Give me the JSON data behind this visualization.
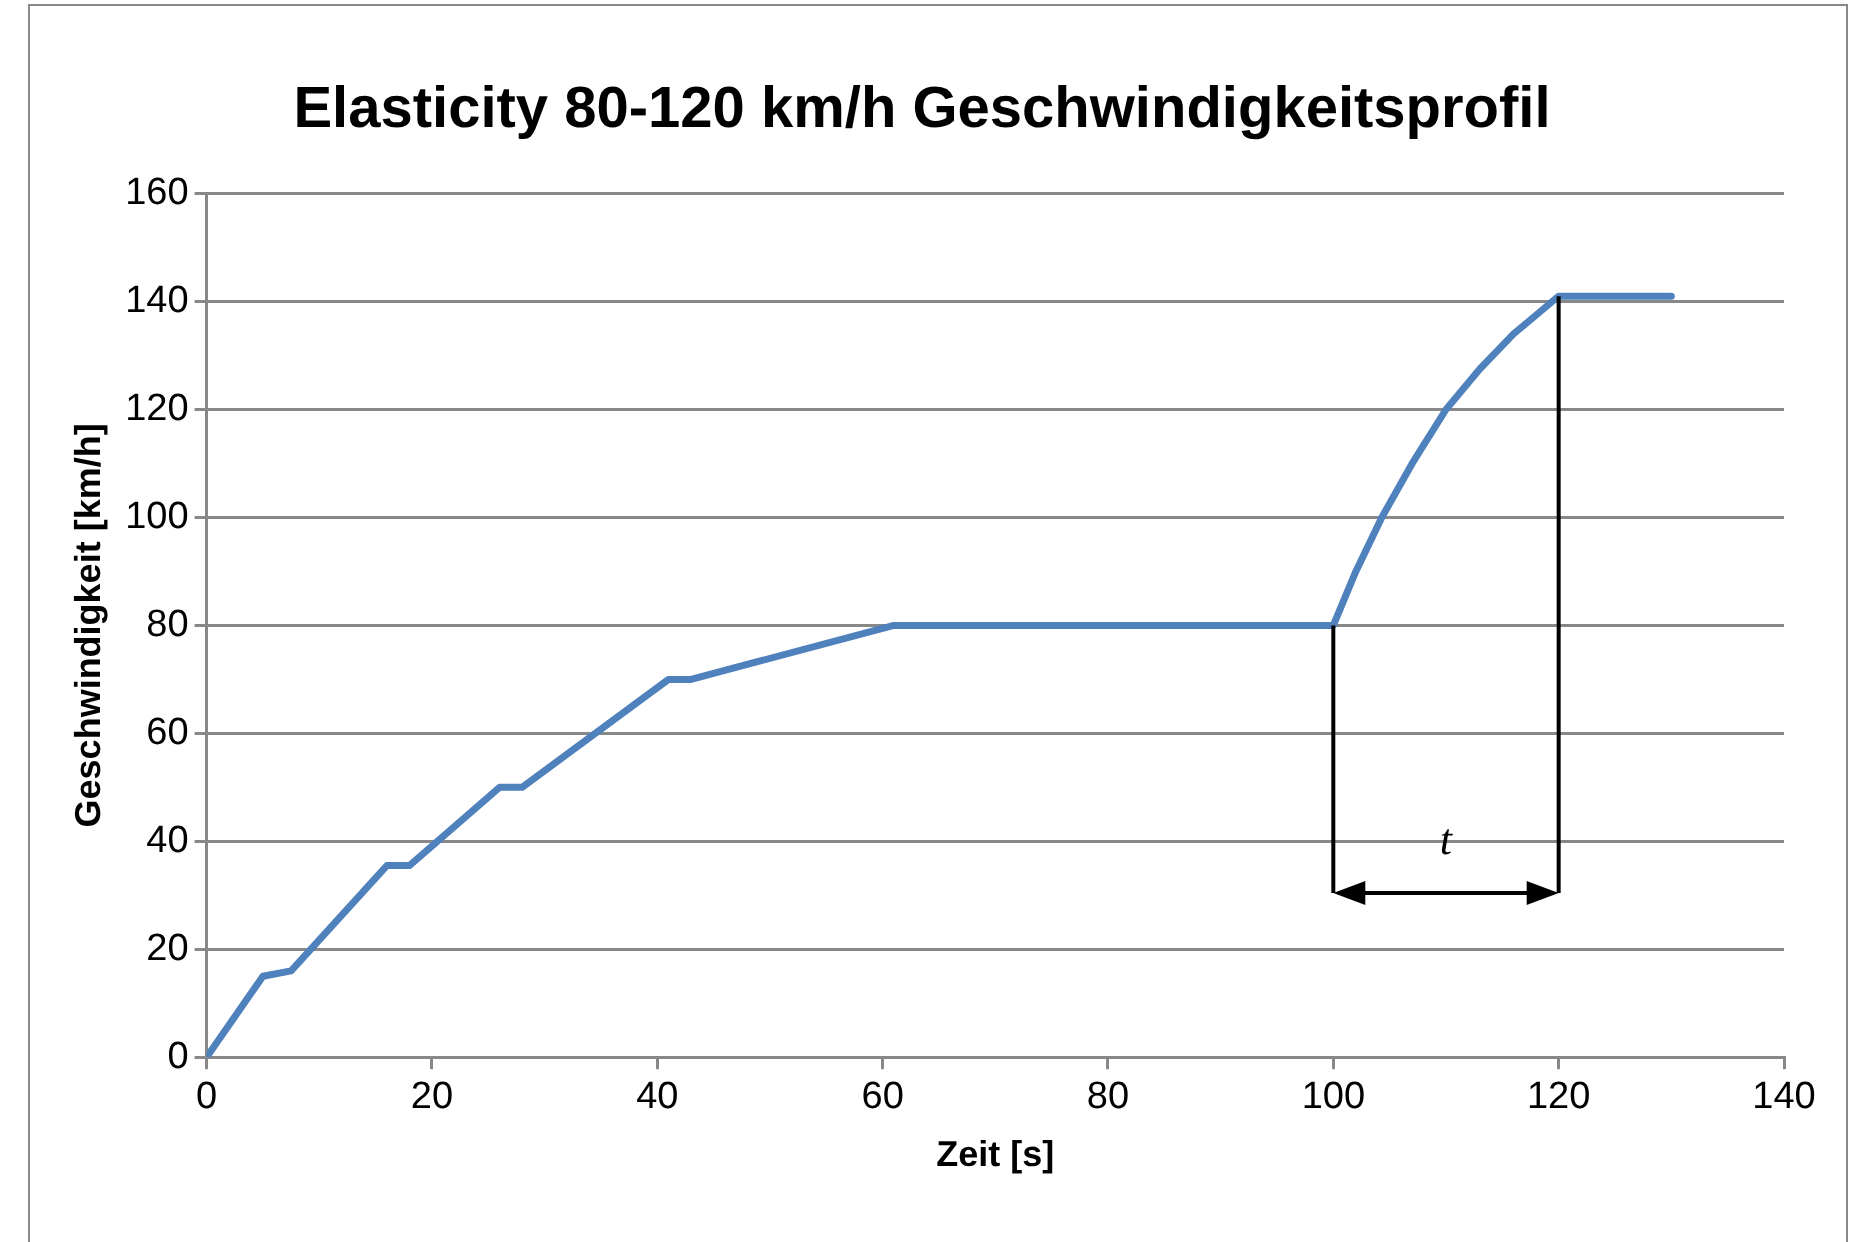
{
  "chart_data": {
    "type": "line",
    "title": "Elasticity 80-120 km/h Geschwindigkeitsprofil",
    "xlabel": "Zeit [s]",
    "ylabel": "Geschwindigkeit [km/h]",
    "x": [
      0,
      5,
      7.5,
      16,
      18,
      26,
      28,
      41,
      43,
      61,
      100,
      102,
      104.3,
      107,
      110,
      113,
      116,
      120,
      130
    ],
    "series": [
      {
        "color": "#4f81bd",
        "values": [
          0,
          15,
          16,
          35.5,
          35.5,
          50,
          50,
          70,
          70,
          80,
          80,
          90,
          100,
          110,
          120,
          127.5,
          134,
          141,
          141
        ]
      }
    ],
    "xlim": [
      0,
      140
    ],
    "xticks": [
      0,
      20,
      40,
      60,
      80,
      100,
      120,
      140
    ],
    "ylim": [
      0,
      160
    ],
    "yticks": [
      0,
      20,
      40,
      60,
      80,
      100,
      120,
      140,
      160
    ],
    "grid": "y",
    "legend": false,
    "marker": "none",
    "line_style": "solid",
    "ref_lines": [
      {
        "axis": "x",
        "value": 100,
        "color": "#000000"
      },
      {
        "axis": "x",
        "value": 120,
        "color": "#000000"
      }
    ],
    "annotations": [
      "t"
    ]
  }
}
